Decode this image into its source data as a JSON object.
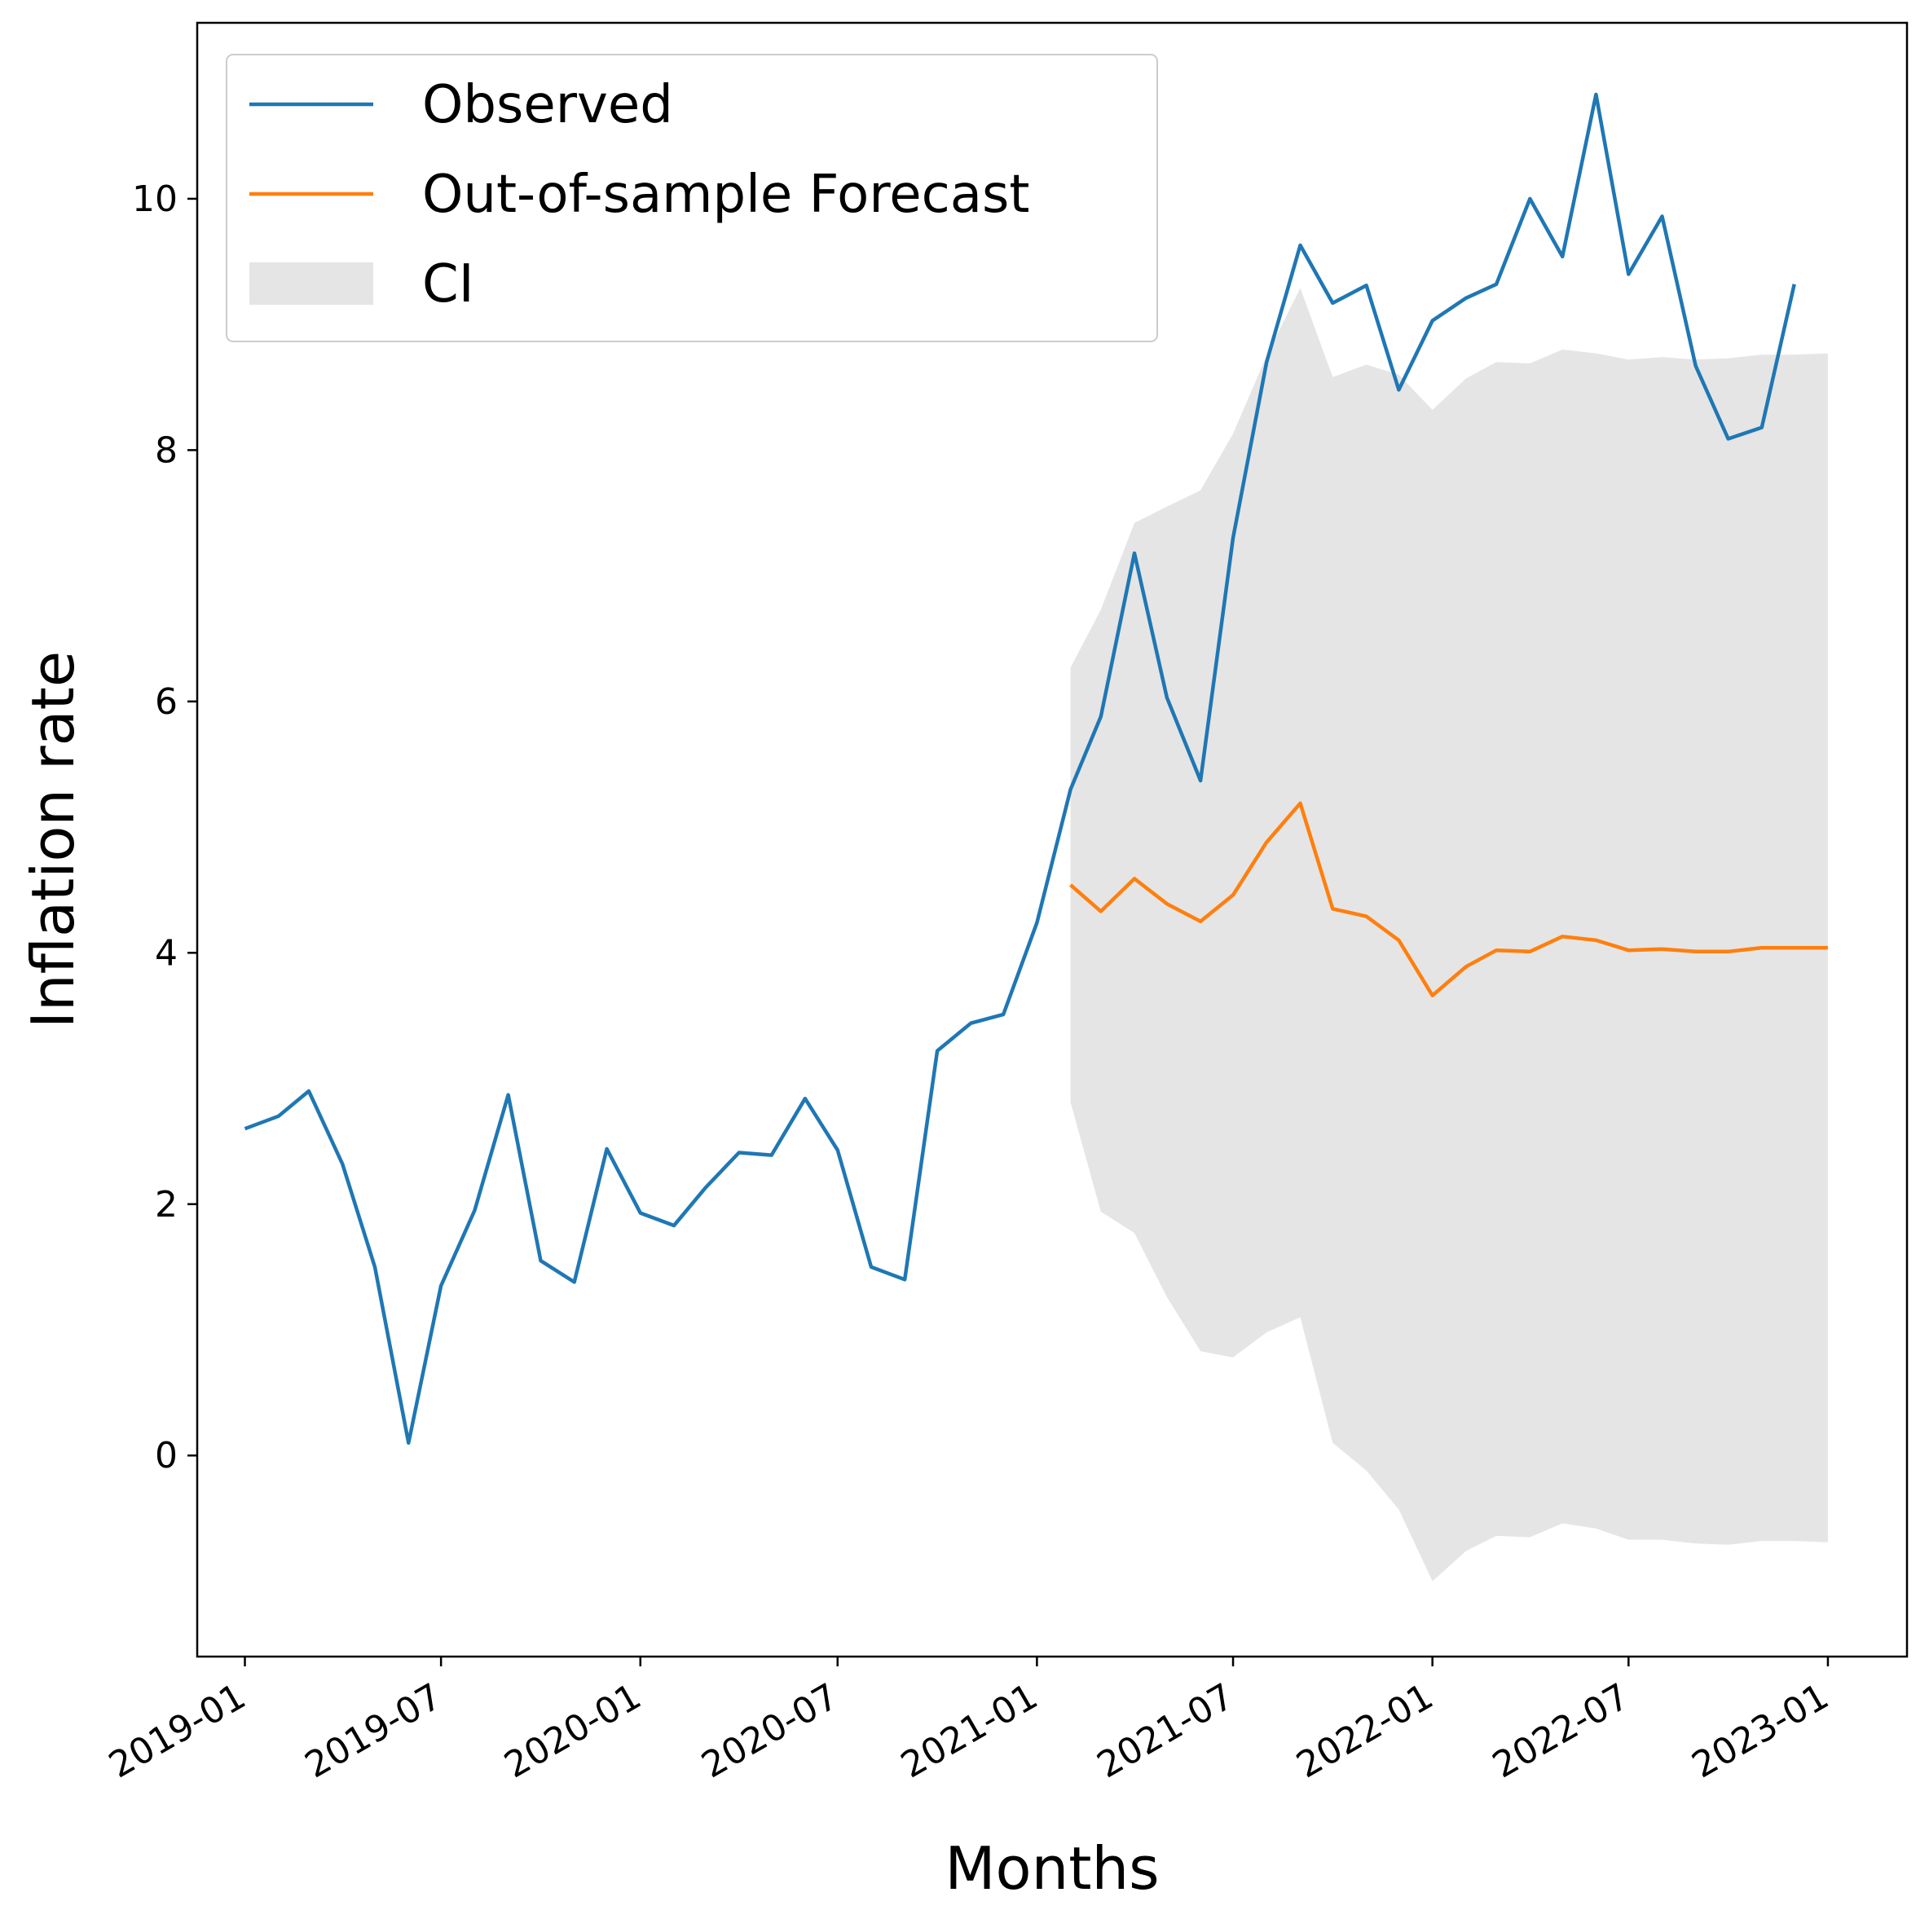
{
  "chart_data": {
    "type": "line",
    "title": "",
    "xlabel": "Months",
    "ylabel": "Inflation rate",
    "x_tick_labels": [
      "2019-01",
      "2019-07",
      "2020-01",
      "2020-07",
      "2021-01",
      "2021-07",
      "2022-01",
      "2022-07",
      "2023-01"
    ],
    "y_tick_labels": [
      "0",
      "2",
      "4",
      "6",
      "8",
      "10"
    ],
    "y_ticks": [
      0,
      2,
      4,
      6,
      8,
      10
    ],
    "ylim": [
      -1.6,
      11.4
    ],
    "xlim": [
      "2018-11-18",
      "2023-03-15"
    ],
    "grid": false,
    "legend_position": "top-left",
    "series": [
      {
        "name": "Observed",
        "color": "#1f77b4",
        "x": [
          "2019-01",
          "2019-02",
          "2019-03",
          "2019-04",
          "2019-05",
          "2019-06",
          "2019-07",
          "2019-08",
          "2019-09",
          "2019-10",
          "2019-11",
          "2019-12",
          "2020-01",
          "2020-02",
          "2020-03",
          "2020-04",
          "2020-05",
          "2020-06",
          "2020-07",
          "2020-08",
          "2020-09",
          "2020-10",
          "2020-11",
          "2020-12",
          "2021-01",
          "2021-02",
          "2021-03",
          "2021-04",
          "2021-05",
          "2021-06",
          "2021-07",
          "2021-08",
          "2021-09",
          "2021-10",
          "2021-11",
          "2021-12",
          "2022-01",
          "2022-02",
          "2022-03",
          "2022-04",
          "2022-05",
          "2022-06",
          "2022-07",
          "2022-08",
          "2022-09",
          "2022-10",
          "2022-11",
          "2022-12"
        ],
        "values": [
          2.6,
          2.7,
          2.9,
          2.32,
          1.5,
          0.1,
          1.35,
          1.95,
          2.87,
          1.55,
          1.38,
          2.44,
          1.93,
          1.83,
          2.13,
          2.41,
          2.39,
          2.84,
          2.43,
          1.5,
          1.4,
          3.22,
          3.44,
          3.51,
          4.24,
          5.3,
          5.88,
          7.18,
          6.03,
          5.37,
          7.3,
          8.7,
          9.63,
          9.17,
          9.31,
          8.48,
          9.03,
          9.21,
          9.32,
          10.0,
          9.54,
          10.83,
          9.4,
          9.86,
          8.67,
          8.09,
          8.18,
          9.32
        ]
      },
      {
        "name": "Out-of-sample Forecast",
        "color": "#ff7f0e",
        "x": [
          "2021-02",
          "2021-03",
          "2021-04",
          "2021-05",
          "2021-06",
          "2021-07",
          "2021-08",
          "2021-09",
          "2021-10",
          "2021-11",
          "2021-12",
          "2022-01",
          "2022-02",
          "2022-03",
          "2022-04",
          "2022-05",
          "2022-06",
          "2022-07",
          "2022-08",
          "2022-09",
          "2022-10",
          "2022-11",
          "2022-12",
          "2023-01"
        ],
        "values": [
          4.54,
          4.33,
          4.59,
          4.39,
          4.25,
          4.46,
          4.88,
          5.19,
          4.35,
          4.29,
          4.1,
          3.66,
          3.89,
          4.02,
          4.01,
          4.13,
          4.1,
          4.02,
          4.03,
          4.01,
          4.01,
          4.04,
          4.04,
          4.04
        ]
      },
      {
        "name": "CI",
        "type": "area",
        "color": "#e5e5e5",
        "x": [
          "2021-02",
          "2021-03",
          "2021-04",
          "2021-05",
          "2021-06",
          "2021-07",
          "2021-08",
          "2021-09",
          "2021-10",
          "2021-11",
          "2021-12",
          "2022-01",
          "2022-02",
          "2022-03",
          "2022-04",
          "2022-05",
          "2022-06",
          "2022-07",
          "2022-08",
          "2022-09",
          "2022-10",
          "2022-11",
          "2022-12",
          "2023-01"
        ],
        "upper": [
          6.27,
          6.73,
          7.42,
          7.55,
          7.68,
          8.13,
          8.75,
          9.29,
          8.58,
          8.68,
          8.6,
          8.32,
          8.57,
          8.7,
          8.69,
          8.8,
          8.77,
          8.72,
          8.74,
          8.72,
          8.73,
          8.76,
          8.76,
          8.77
        ],
        "lower": [
          2.81,
          1.94,
          1.77,
          1.26,
          0.83,
          0.78,
          0.98,
          1.1,
          0.1,
          -0.12,
          -0.43,
          -1.0,
          -0.76,
          -0.64,
          -0.65,
          -0.54,
          -0.58,
          -0.67,
          -0.67,
          -0.7,
          -0.71,
          -0.68,
          -0.68,
          -0.69
        ]
      }
    ]
  }
}
